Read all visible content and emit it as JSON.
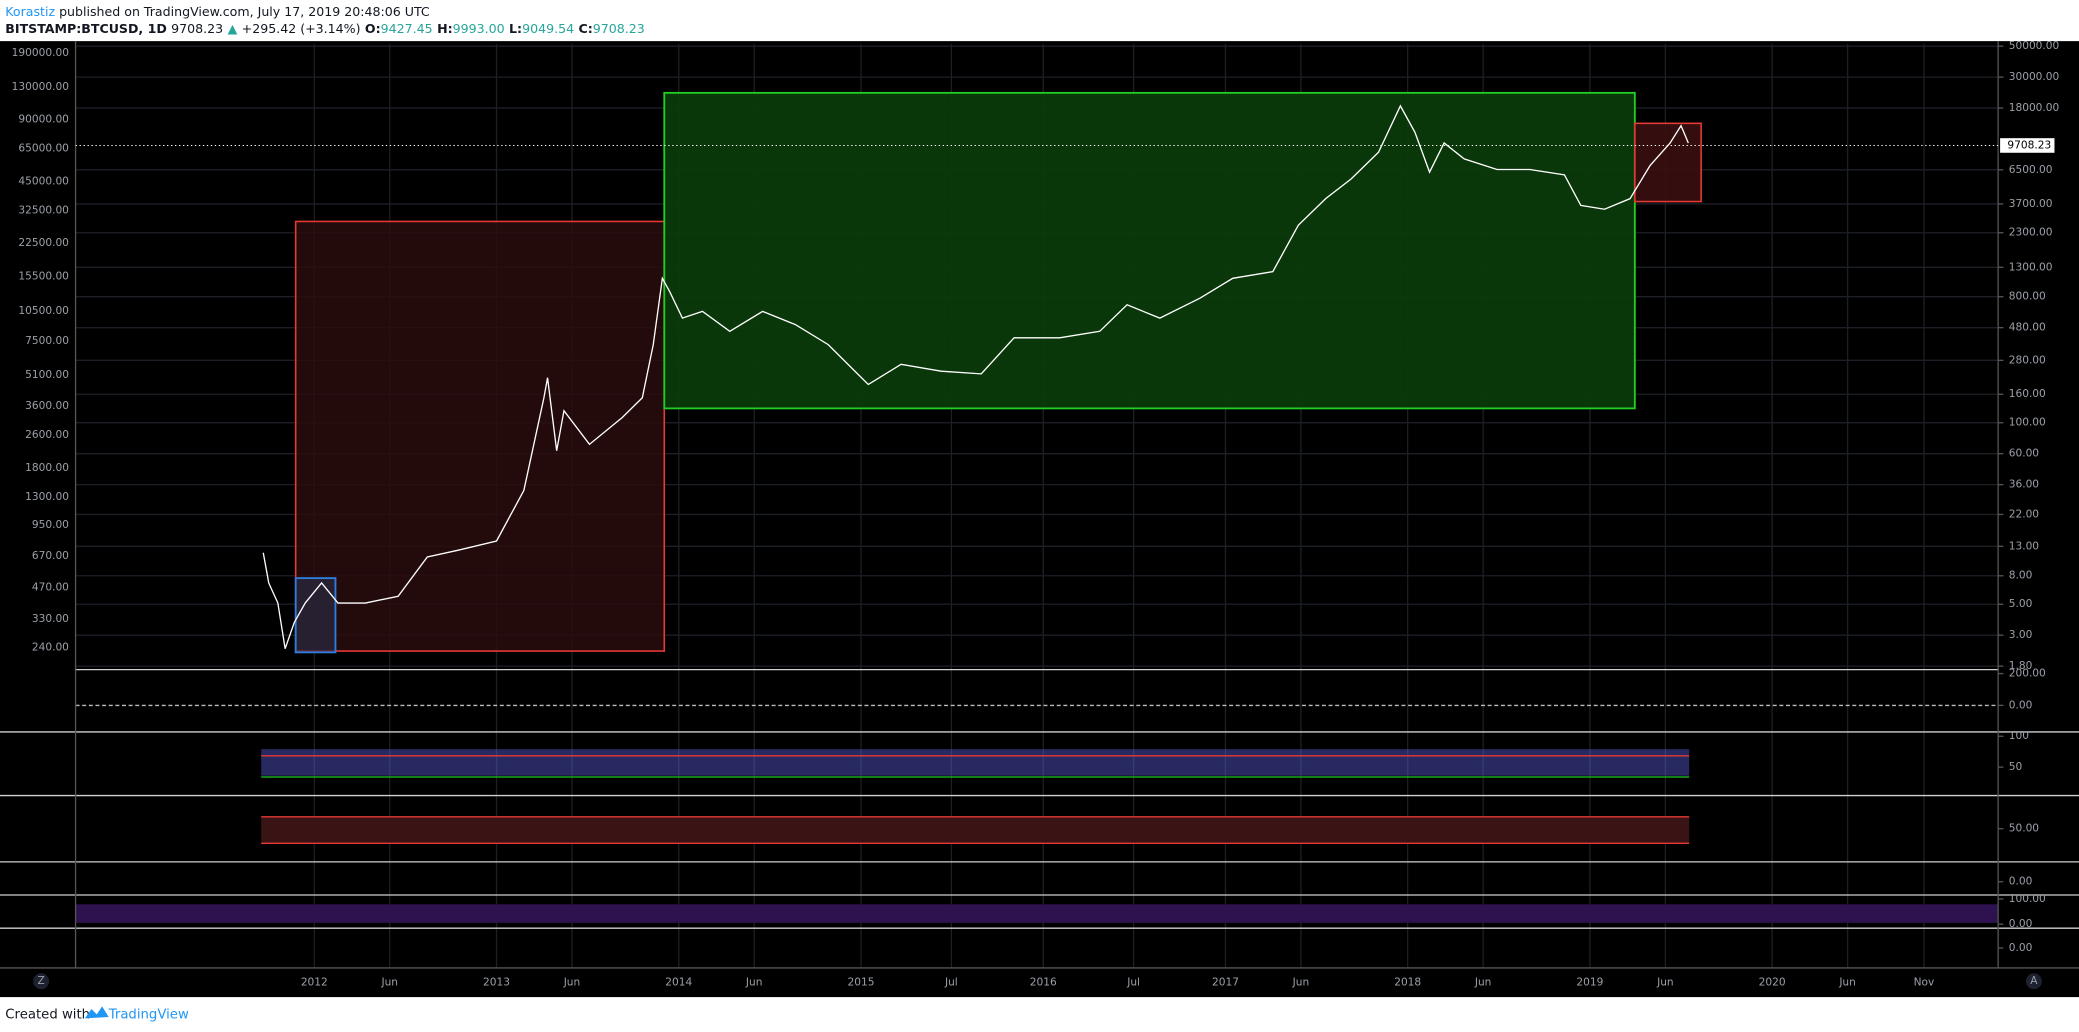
{
  "header": {
    "author": "Korastiz",
    "published": "published on TradingView.com, July 17, 2019 20:48:06 UTC",
    "symbol": "BITSTAMP:BTCUSD, 1D",
    "last": "9708.23",
    "arrow": "▲",
    "change": "+295.42 (+3.14%)",
    "open_label": "O:",
    "open": "9427.45",
    "high_label": "H:",
    "high": "9993.00",
    "low_label": "L:",
    "low": "9049.54",
    "close_label": "C:",
    "close": "9708.23"
  },
  "chart_data": {
    "type": "line",
    "color": "#ffffff",
    "log_scale": true,
    "grid": true,
    "x": [
      2011.72,
      2011.75,
      2011.8,
      2011.84,
      2011.89,
      2011.95,
      2012.04,
      2012.13,
      2012.28,
      2012.46,
      2012.62,
      2012.79,
      2013.0,
      2013.15,
      2013.26,
      2013.28,
      2013.33,
      2013.37,
      2013.51,
      2013.69,
      2013.8,
      2013.86,
      2013.91,
      2013.95,
      2014.02,
      2014.13,
      2014.28,
      2014.46,
      2014.64,
      2014.82,
      2015.04,
      2015.22,
      2015.44,
      2015.66,
      2015.84,
      2016.09,
      2016.31,
      2016.46,
      2016.64,
      2016.86,
      2017.04,
      2017.26,
      2017.4,
      2017.55,
      2017.69,
      2017.84,
      2017.96,
      2018.04,
      2018.12,
      2018.2,
      2018.31,
      2018.49,
      2018.67,
      2018.86,
      2018.95,
      2019.08,
      2019.22,
      2019.33,
      2019.44,
      2019.5,
      2019.54
    ],
    "values": [
      11.7,
      7.1,
      5.1,
      2.4,
      3.7,
      5.1,
      7.1,
      5.1,
      5.1,
      5.7,
      10.9,
      12.2,
      14.2,
      32.7,
      151,
      210,
      63,
      122,
      70,
      109,
      151,
      363,
      1084,
      871,
      562,
      628,
      452,
      628,
      505,
      363,
      188,
      262,
      234,
      224,
      406,
      406,
      452,
      700,
      562,
      781,
      1084,
      1211,
      2606,
      4036,
      5598,
      8690,
      18660,
      12050,
      6250,
      10120,
      7780,
      6530,
      6530,
      5980,
      3610,
      3390,
      4036,
      6970,
      10120,
      13460,
      10120
    ],
    "last_price": {
      "value": 9708.23,
      "label": "9708.23"
    },
    "xlim": [
      2010.69,
      2021.24
    ],
    "xticks": [
      {
        "value": 2012,
        "label": "2012"
      },
      {
        "value": 2012.414,
        "label": "Jun"
      },
      {
        "value": 2013,
        "label": "2013"
      },
      {
        "value": 2013.414,
        "label": "Jun"
      },
      {
        "value": 2014,
        "label": "2014"
      },
      {
        "value": 2014.414,
        "label": "Jun"
      },
      {
        "value": 2015,
        "label": "2015"
      },
      {
        "value": 2015.496,
        "label": "Jul"
      },
      {
        "value": 2016,
        "label": "2016"
      },
      {
        "value": 2016.496,
        "label": "Jul"
      },
      {
        "value": 2017,
        "label": "2017"
      },
      {
        "value": 2017.414,
        "label": "Jun"
      },
      {
        "value": 2018,
        "label": "2018"
      },
      {
        "value": 2018.414,
        "label": "Jun"
      },
      {
        "value": 2019,
        "label": "2019"
      },
      {
        "value": 2019.414,
        "label": "Jun"
      },
      {
        "value": 2020,
        "label": "2020"
      },
      {
        "value": 2020.414,
        "label": "Jun"
      },
      {
        "value": 2020.833,
        "label": "Nov"
      }
    ],
    "ylim": [
      1.7,
      52000
    ],
    "yticks": [
      {
        "value": 50000,
        "label": "50000.00"
      },
      {
        "value": 30000,
        "label": "30000.00"
      },
      {
        "value": 18000,
        "label": "18000.00"
      },
      {
        "value": 6500,
        "label": "6500.00"
      },
      {
        "value": 3700,
        "label": "3700.00"
      },
      {
        "value": 2300,
        "label": "2300.00"
      },
      {
        "value": 1300,
        "label": "1300.00"
      },
      {
        "value": 800,
        "label": "800.00"
      },
      {
        "value": 480,
        "label": "480.00"
      },
      {
        "value": 280,
        "label": "280.00"
      },
      {
        "value": 160,
        "label": "160.00"
      },
      {
        "value": 100,
        "label": "100.00"
      },
      {
        "value": 60,
        "label": "60.00"
      },
      {
        "value": 36,
        "label": "36.00"
      },
      {
        "value": 22,
        "label": "22.00"
      },
      {
        "value": 13,
        "label": "13.00"
      },
      {
        "value": 8,
        "label": "8.00"
      },
      {
        "value": 5,
        "label": "5.00"
      },
      {
        "value": 3,
        "label": "3.00"
      },
      {
        "value": 1.8,
        "label": "1.80"
      }
    ],
    "y2lim": [
      187,
      211000
    ],
    "y2ticks": [
      {
        "value": 190000,
        "label": "190000.00"
      },
      {
        "value": 130000,
        "label": "130000.00"
      },
      {
        "value": 90000,
        "label": "90000.00"
      },
      {
        "value": 65000,
        "label": "65000.00"
      },
      {
        "value": 45000,
        "label": "45000.00"
      },
      {
        "value": 32500,
        "label": "32500.00"
      },
      {
        "value": 22500,
        "label": "22500.00"
      },
      {
        "value": 15500,
        "label": "15500.00"
      },
      {
        "value": 10500,
        "label": "10500.00"
      },
      {
        "value": 7500,
        "label": "7500.00"
      },
      {
        "value": 5100,
        "label": "5100.00"
      },
      {
        "value": 3600,
        "label": "3600.00"
      },
      {
        "value": 2600,
        "label": "2600.00"
      },
      {
        "value": 1800,
        "label": "1800.00"
      },
      {
        "value": 1300,
        "label": "1300.00"
      },
      {
        "value": 950,
        "label": "950.00"
      },
      {
        "value": 670,
        "label": "670.00"
      },
      {
        "value": 470,
        "label": "470.00"
      },
      {
        "value": 330,
        "label": "330.00"
      },
      {
        "value": 240,
        "label": "240.00"
      }
    ],
    "panes": [
      {
        "ylim": [
          -167,
          225
        ],
        "yticks": [
          {
            "value": 200,
            "label": "200.00"
          },
          {
            "value": 0,
            "label": "0.00"
          }
        ]
      },
      {
        "ylim": [
          4,
          107
        ],
        "yticks": [
          100,
          50
        ]
      },
      {
        "ylim": [
          0,
          100
        ],
        "yticks": [
          {
            "value": 50,
            "label": "50.00"
          }
        ]
      },
      {
        "ylim": [
          -100,
          150
        ],
        "yticks": [
          {
            "value": 0,
            "label": "0.00"
          }
        ]
      },
      {
        "ylim": [
          -16,
          116
        ],
        "yticks": [
          {
            "value": 100,
            "label": "100.00"
          },
          {
            "value": 0,
            "label": "0.00"
          }
        ]
      },
      {
        "ylim": [
          -100,
          100
        ],
        "yticks": [
          {
            "value": 0,
            "label": "0.00"
          }
        ]
      }
    ]
  },
  "corners": {
    "left": "Z",
    "right": "A"
  },
  "footer": {
    "created": "Created with",
    "brand": "TradingView"
  }
}
